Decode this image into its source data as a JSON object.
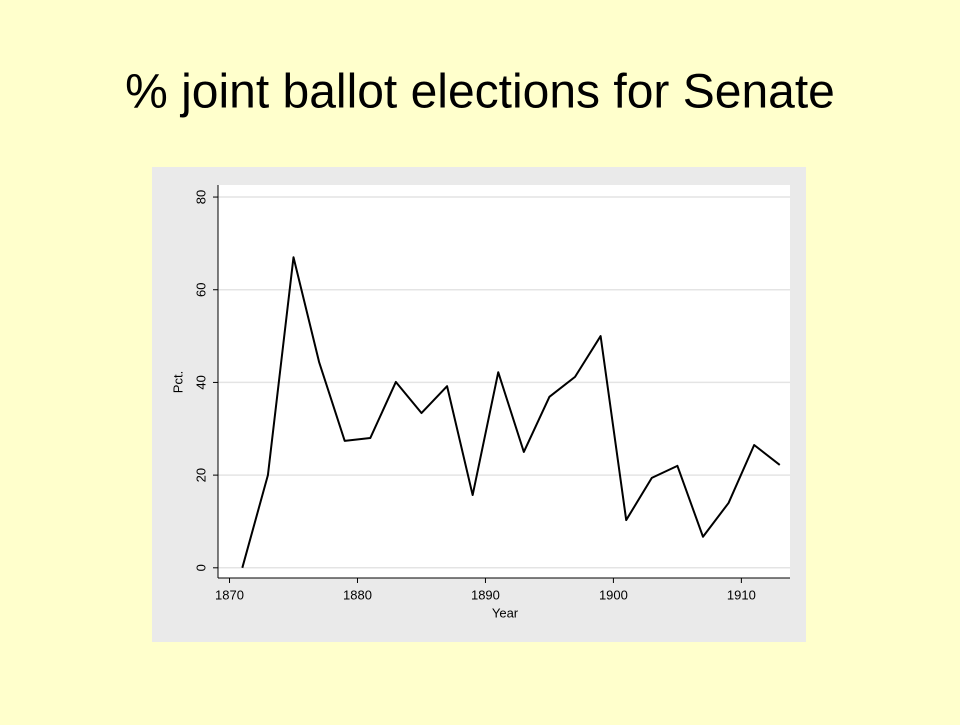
{
  "chart_data": {
    "type": "line",
    "title": "% joint ballot elections for Senate",
    "x_label": "Year",
    "y_label": "Pct.",
    "x": [
      1871,
      1873,
      1875,
      1877,
      1879,
      1881,
      1883,
      1885,
      1887,
      1889,
      1891,
      1893,
      1895,
      1897,
      1899,
      1901,
      1903,
      1905,
      1907,
      1909,
      1911,
      1913
    ],
    "series": [
      {
        "name": "Pct.",
        "color": "#000000",
        "values": [
          0,
          20,
          67,
          44.4,
          27.4,
          28,
          40.1,
          33.4,
          39.2,
          15.7,
          42.2,
          25,
          36.9,
          41.2,
          50,
          10.3,
          19.4,
          22,
          6.7,
          14,
          26.5,
          22.2
        ]
      }
    ],
    "xlim": [
      1869.1,
      1913.8
    ],
    "ylim": [
      -2.2,
      82.6
    ],
    "xticks": [
      1870,
      1880,
      1890,
      1900,
      1910
    ],
    "yticks": [
      0,
      20,
      40,
      60,
      80
    ],
    "grid": true
  }
}
